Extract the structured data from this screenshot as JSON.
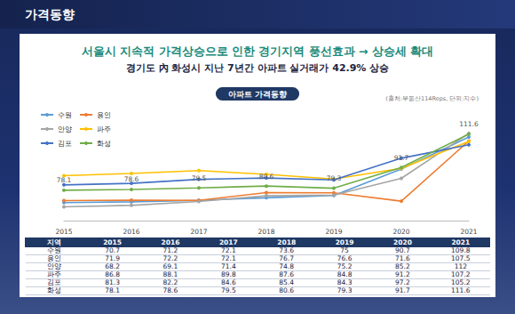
{
  "header": {
    "title": "가격동향"
  },
  "headline": "서울시 지속적 가격상승으로 인한 경기지역 풍선효과 → 상승세 확대",
  "subtitle": "경기도 內 화성시 지난 7년간 아파트 실거래가 42.9% 상승",
  "chart_data": {
    "type": "line",
    "title": "아파트 가격동향",
    "source": "(출처:부동산114Reps, 단위:지수)",
    "categories": [
      "2015",
      "2016",
      "2017",
      "2018",
      "2019",
      "2020",
      "2021"
    ],
    "series": [
      {
        "name": "수원",
        "color": "#5b9bd5",
        "marker": "circle",
        "values": [
          70.7,
          71.2,
          72.1,
          73.6,
          75,
          90.7,
          109.8
        ]
      },
      {
        "name": "용인",
        "color": "#ed7d31",
        "marker": "circle",
        "values": [
          71.9,
          72.2,
          72.1,
          76.7,
          76.6,
          71.6,
          107.5
        ]
      },
      {
        "name": "안양",
        "color": "#a5a5a5",
        "marker": "circle",
        "values": [
          68.2,
          69.1,
          71.4,
          74.8,
          75.2,
          85.2,
          112
        ]
      },
      {
        "name": "파주",
        "color": "#ffc000",
        "marker": "circle",
        "values": [
          86.8,
          88.1,
          89.8,
          87.6,
          84.8,
          91.2,
          107.2
        ]
      },
      {
        "name": "김포",
        "color": "#4472c4",
        "marker": "circle",
        "values": [
          81.3,
          82.2,
          84.6,
          85.4,
          84.3,
          97.2,
          105.2
        ]
      },
      {
        "name": "화성",
        "color": "#70ad47",
        "marker": "circle",
        "data_labels": true,
        "values": [
          78.1,
          78.6,
          79.5,
          80.6,
          79.3,
          91.7,
          111.6
        ]
      }
    ],
    "ylim": [
      60,
      130
    ],
    "grid": false,
    "legend": "upper left",
    "tick_labels": "x"
  },
  "table": {
    "columns": [
      "지역",
      "2015",
      "2016",
      "2017",
      "2018",
      "2019",
      "2020",
      "2021"
    ],
    "rows": [
      [
        "수원",
        70.7,
        71.2,
        72.1,
        73.6,
        75,
        90.7,
        109.8
      ],
      [
        "용인",
        71.9,
        72.2,
        72.1,
        76.7,
        76.6,
        71.6,
        107.5
      ],
      [
        "안양",
        68.2,
        69.1,
        71.4,
        74.8,
        75.2,
        85.2,
        112
      ],
      [
        "파주",
        86.8,
        88.1,
        89.8,
        87.6,
        84.8,
        91.2,
        107.2
      ],
      [
        "김포",
        81.3,
        82.2,
        84.6,
        85.4,
        84.3,
        97.2,
        105.2
      ],
      [
        "화성",
        78.1,
        78.6,
        79.5,
        80.6,
        79.3,
        91.7,
        111.6
      ]
    ]
  }
}
